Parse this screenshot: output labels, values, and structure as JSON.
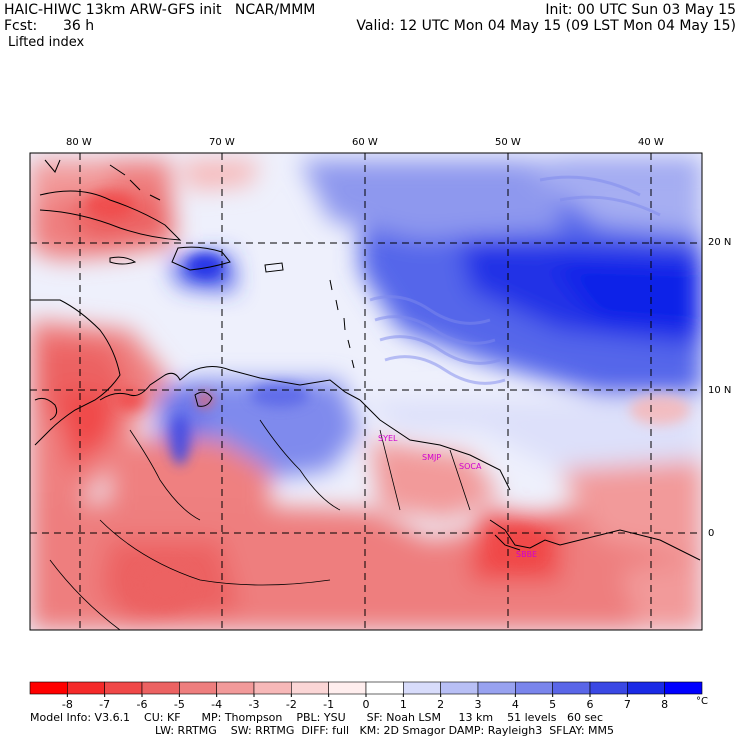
{
  "header": {
    "title": "HAIC-HIWC 13km ARW-GFS init   NCAR/MMM",
    "init": "Init: 00 UTC Sun 03 May 15",
    "fcst_label": "Fcst:",
    "fcst_value": "36 h",
    "valid": "Valid: 12 UTC Mon 04 May 15 (09 LST Mon 04 May 15)",
    "field": "Lifted index"
  },
  "map": {
    "lon_labels": [
      "80 W",
      "70 W",
      "60 W",
      "50 W",
      "40 W"
    ],
    "lat_labels": [
      "20 N",
      "10 N",
      "0"
    ],
    "stations": [
      "SYEL",
      "SMJP",
      "SOCA",
      "SBBE"
    ],
    "colors": {
      "land_outline": "#000000",
      "station_text": "#d000d0"
    }
  },
  "colorbar": {
    "ticks": [
      "-8",
      "-7",
      "-6",
      "-5",
      "-4",
      "-3",
      "-2",
      "-1",
      "0",
      "1",
      "2",
      "3",
      "4",
      "5",
      "6",
      "7",
      "8"
    ],
    "unit": "°C",
    "colors": [
      "#ff0000",
      "#f52a2a",
      "#f04848",
      "#ec6262",
      "#ee7e7e",
      "#f29a9a",
      "#f7b8b8",
      "#fbd6d6",
      "#ffeeee",
      "#ffffff",
      "#d8dcfb",
      "#b8bff5",
      "#98a2f0",
      "#7a85ec",
      "#5a66e8",
      "#3a48e4",
      "#1a2ae6",
      "#0000ff"
    ]
  },
  "footer": {
    "line1": "Model Info: V3.6.1    CU: KF      MP: Thompson    PBL: YSU      SF: Noah LSM     13 km    51 levels   60 sec",
    "line2": "LW: RRTMG    SW: RRTMG  DIFF: full   KM: 2D Smagor DAMP: Rayleigh3  SFLAY: MM5"
  }
}
